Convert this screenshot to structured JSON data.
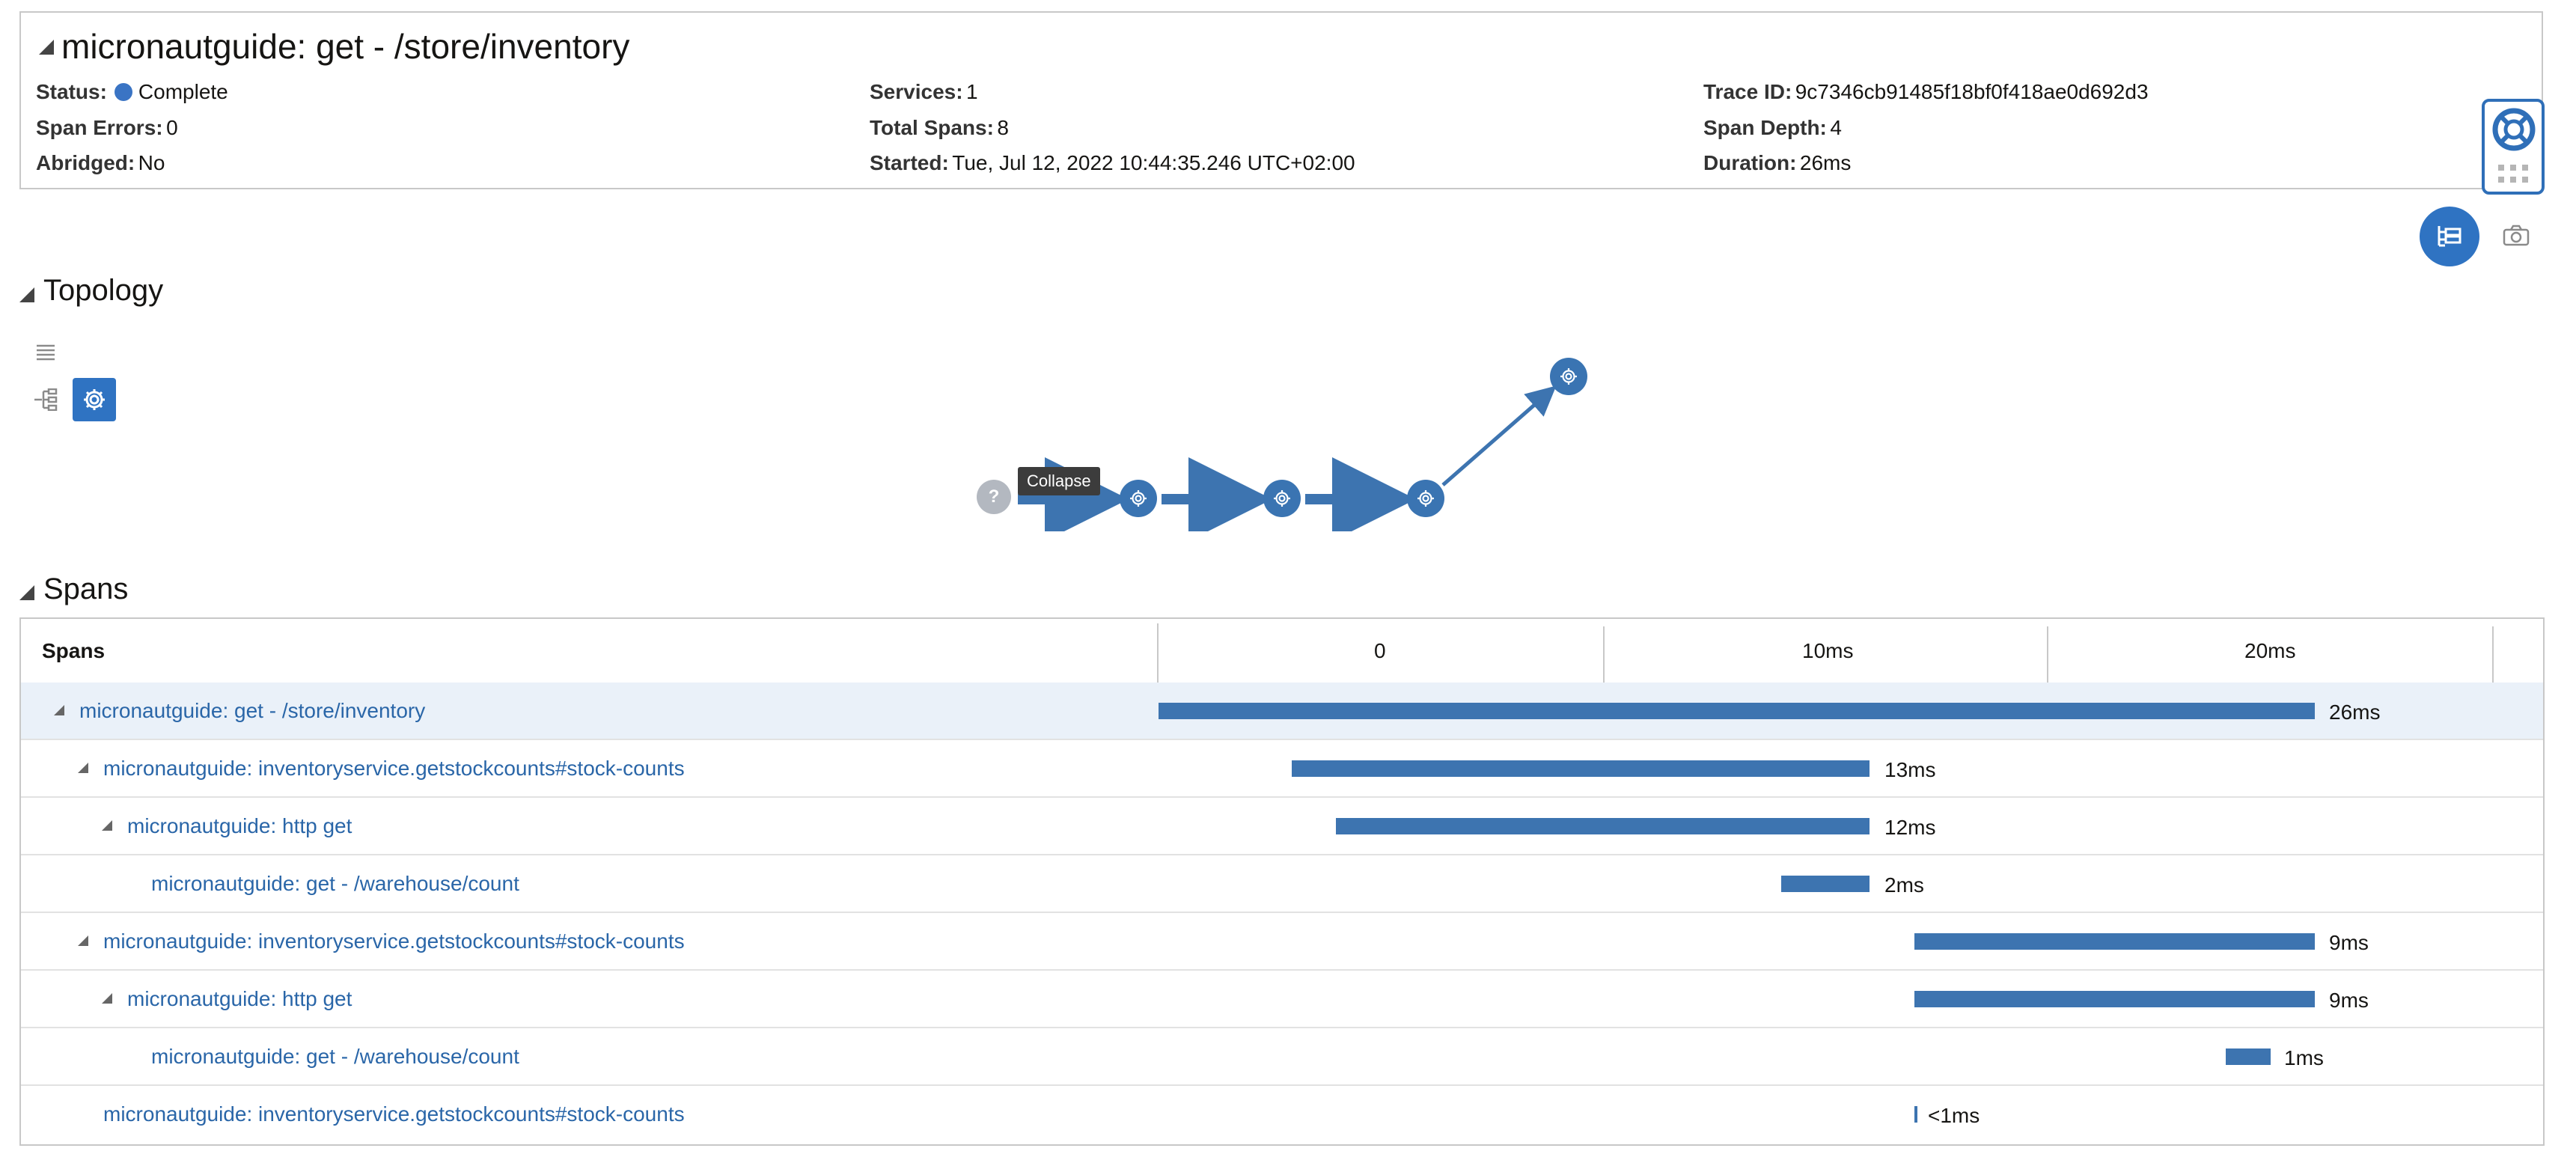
{
  "trace": {
    "title": "micronautguide: get - /store/inventory",
    "status_label": "Status:",
    "status_value": "Complete",
    "span_errors_label": "Span Errors:",
    "span_errors_value": "0",
    "abridged_label": "Abridged:",
    "abridged_value": "No",
    "services_label": "Services:",
    "services_value": "1",
    "total_spans_label": "Total Spans:",
    "total_spans_value": "8",
    "started_label": "Started:",
    "started_value": "Tue, Jul 12, 2022 10:44:35.246 UTC+02:00",
    "trace_id_label": "Trace ID:",
    "trace_id_value": "9c7346cb91485f18bf0f418ae0d692d3",
    "span_depth_label": "Span Depth:",
    "span_depth_value": "4",
    "duration_label": "Duration:",
    "duration_value": "26ms"
  },
  "topology": {
    "title": "Topology",
    "tooltip": "Collapse",
    "unknown_node": "?",
    "colors": {
      "node": "#3a74b2",
      "unknown": "#b3b8c0",
      "edge": "#3d74b0"
    }
  },
  "spans": {
    "title": "Spans",
    "column_header": "Spans",
    "ticks": [
      "0",
      "10ms",
      "20ms"
    ],
    "rows": [
      {
        "label": "micronautguide: get - /store/inventory",
        "duration": "26ms"
      },
      {
        "label": "micronautguide: inventoryservice.getstockcounts#stock-counts",
        "duration": "13ms"
      },
      {
        "label": "micronautguide: http get",
        "duration": "12ms"
      },
      {
        "label": "micronautguide: get - /warehouse/count",
        "duration": "2ms"
      },
      {
        "label": "micronautguide: inventoryservice.getstockcounts#stock-counts",
        "duration": "9ms"
      },
      {
        "label": "micronautguide: http get",
        "duration": "9ms"
      },
      {
        "label": "micronautguide: get - /warehouse/count",
        "duration": "1ms"
      },
      {
        "label": "micronautguide: inventoryservice.getstockcounts#stock-counts",
        "duration": "<1ms"
      }
    ]
  },
  "colors": {
    "accent": "#2f73c2",
    "link": "#2a66a8",
    "bar": "#3d74b0",
    "selected_row": "#eaf1f9"
  }
}
